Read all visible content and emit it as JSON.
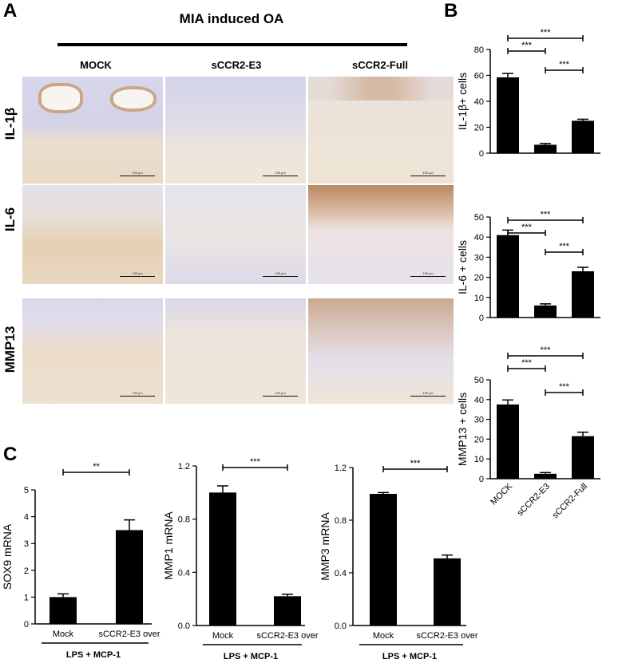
{
  "panelA": {
    "letter": "A",
    "title": "MIA induced OA",
    "columns": [
      "MOCK",
      "sCCR2-E3",
      "sCCR2-Full"
    ],
    "rows": [
      "IL-1β",
      "IL-6",
      "MMP13"
    ],
    "scale_label": "100 μm"
  },
  "panelB": {
    "letter": "B"
  },
  "panelC": {
    "letter": "C"
  },
  "chart_data": [
    {
      "type": "bar",
      "ylabel": "IL-1β+ cells",
      "categories": [
        "MOCK",
        "sCCR2-E3",
        "sCCR2-Full"
      ],
      "values": [
        58.5,
        6.5,
        25
      ],
      "errors": [
        3,
        1,
        1.2
      ],
      "ylim": [
        0,
        80
      ],
      "yticks": [
        0,
        20,
        40,
        60,
        80
      ],
      "show_xlabels": false,
      "significance": [
        {
          "from": 0,
          "to": 1,
          "label": "***"
        },
        {
          "from": 1,
          "to": 2,
          "label": "***"
        },
        {
          "from": 0,
          "to": 2,
          "label": "***"
        }
      ]
    },
    {
      "type": "bar",
      "ylabel": "IL-6 + cells",
      "categories": [
        "MOCK",
        "sCCR2-E3",
        "sCCR2-Full"
      ],
      "values": [
        41,
        6,
        23
      ],
      "errors": [
        2.5,
        0.8,
        2
      ],
      "ylim": [
        0,
        50
      ],
      "yticks": [
        0,
        10,
        20,
        30,
        40,
        50
      ],
      "show_xlabels": false,
      "significance": [
        {
          "from": 0,
          "to": 1,
          "label": "***"
        },
        {
          "from": 1,
          "to": 2,
          "label": "***"
        },
        {
          "from": 0,
          "to": 2,
          "label": "***"
        }
      ]
    },
    {
      "type": "bar",
      "ylabel": "MMP13 + cells",
      "categories": [
        "MOCK",
        "sCCR2-E3",
        "sCCR2-Full"
      ],
      "values": [
        37.5,
        2.5,
        21.5
      ],
      "errors": [
        2.3,
        0.6,
        2
      ],
      "ylim": [
        0,
        50
      ],
      "yticks": [
        0,
        10,
        20,
        30,
        40,
        50
      ],
      "show_xlabels": true,
      "significance": [
        {
          "from": 0,
          "to": 1,
          "label": "***"
        },
        {
          "from": 1,
          "to": 2,
          "label": "***"
        },
        {
          "from": 0,
          "to": 2,
          "label": "***"
        }
      ]
    },
    {
      "type": "bar",
      "ylabel": "SOX9 mRNA",
      "categories": [
        "Mock",
        "sCCR2-E3 over"
      ],
      "values": [
        1,
        3.5
      ],
      "errors": [
        0.12,
        0.38
      ],
      "ylim": [
        0,
        5
      ],
      "yticks": [
        0,
        1,
        2,
        3,
        4,
        5
      ],
      "group_label": "LPS + MCP-1",
      "significance": [
        {
          "from": 0,
          "to": 1,
          "label": "**"
        }
      ]
    },
    {
      "type": "bar",
      "ylabel": "MMP1 mRNA",
      "categories": [
        "Mock",
        "sCCR2-E3 over"
      ],
      "values": [
        1,
        0.22
      ],
      "errors": [
        0.05,
        0.015
      ],
      "ylim": [
        0,
        1.2
      ],
      "yticks": [
        0.0,
        0.4,
        0.8,
        1.2
      ],
      "group_label": "LPS + MCP-1",
      "significance": [
        {
          "from": 0,
          "to": 1,
          "label": "***"
        }
      ]
    },
    {
      "type": "bar",
      "ylabel": "MMP3 mRNA",
      "categories": [
        "Mock",
        "sCCR2-E3 over"
      ],
      "values": [
        1,
        0.51
      ],
      "errors": [
        0.01,
        0.025
      ],
      "ylim": [
        0,
        1.2
      ],
      "yticks": [
        0.0,
        0.4,
        0.8,
        1.2
      ],
      "group_label": "LPS + MCP-1",
      "significance": [
        {
          "from": 0,
          "to": 1,
          "label": "***"
        }
      ]
    }
  ]
}
